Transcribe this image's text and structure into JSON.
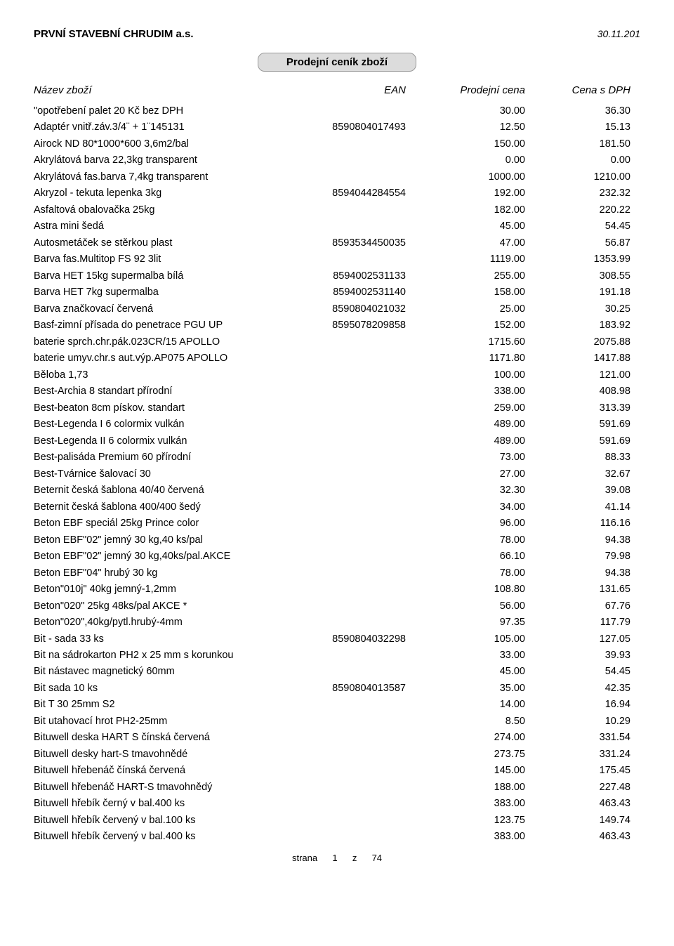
{
  "header": {
    "company": "PRVNÍ STAVEBNÍ CHRUDIM a.s.",
    "date": "30.11.201",
    "title": "Prodejní ceník zboží"
  },
  "columns": {
    "name": "Název zboží",
    "ean": "EAN",
    "price": "Prodejní cena",
    "vat": "Cena s DPH"
  },
  "rows": [
    {
      "name": "\"opotřebení palet 20 Kč bez DPH",
      "ean": "",
      "price": "30.00",
      "vat": "36.30"
    },
    {
      "name": "Adaptér vnitř.záv.3/4¨ + 1¨145131",
      "ean": "8590804017493",
      "price": "12.50",
      "vat": "15.13"
    },
    {
      "name": "Airock ND 80*1000*600 3,6m2/bal",
      "ean": "",
      "price": "150.00",
      "vat": "181.50"
    },
    {
      "name": "Akrylátová barva 22,3kg transparent",
      "ean": "",
      "price": "0.00",
      "vat": "0.00"
    },
    {
      "name": "Akrylátová fas.barva 7,4kg transparent",
      "ean": "",
      "price": "1000.00",
      "vat": "1210.00"
    },
    {
      "name": "Akryzol - tekuta lepenka 3kg",
      "ean": "8594044284554",
      "price": "192.00",
      "vat": "232.32"
    },
    {
      "name": "Asfaltová obalovačka 25kg",
      "ean": "",
      "price": "182.00",
      "vat": "220.22"
    },
    {
      "name": "Astra mini šedá",
      "ean": "",
      "price": "45.00",
      "vat": "54.45"
    },
    {
      "name": "Autosmetáček se stěrkou plast",
      "ean": "8593534450035",
      "price": "47.00",
      "vat": "56.87"
    },
    {
      "name": "Barva fas.Multitop FS 92 3lit",
      "ean": "",
      "price": "1119.00",
      "vat": "1353.99"
    },
    {
      "name": "Barva HET 15kg supermalba bílá",
      "ean": "8594002531133",
      "price": "255.00",
      "vat": "308.55"
    },
    {
      "name": "Barva HET 7kg supermalba",
      "ean": "8594002531140",
      "price": "158.00",
      "vat": "191.18"
    },
    {
      "name": "Barva značkovací červená",
      "ean": "8590804021032",
      "price": "25.00",
      "vat": "30.25"
    },
    {
      "name": "Basf-zimní přísada do penetrace PGU UP",
      "ean": "8595078209858",
      "price": "152.00",
      "vat": "183.92"
    },
    {
      "name": "baterie sprch.chr.pák.023CR/15 APOLLO",
      "ean": "",
      "price": "1715.60",
      "vat": "2075.88"
    },
    {
      "name": "baterie umyv.chr.s aut.výp.AP075 APOLLO",
      "ean": "",
      "price": "1171.80",
      "vat": "1417.88"
    },
    {
      "name": "Běloba 1,73",
      "ean": "",
      "price": "100.00",
      "vat": "121.00"
    },
    {
      "name": "Best-Archia 8 standart přírodní",
      "ean": "",
      "price": "338.00",
      "vat": "408.98"
    },
    {
      "name": "Best-beaton 8cm pískov. standart",
      "ean": "",
      "price": "259.00",
      "vat": "313.39"
    },
    {
      "name": "Best-Legenda I 6 colormix vulkán",
      "ean": "",
      "price": "489.00",
      "vat": "591.69"
    },
    {
      "name": "Best-Legenda II 6 colormix vulkán",
      "ean": "",
      "price": "489.00",
      "vat": "591.69"
    },
    {
      "name": "Best-palisáda Premium 60 přírodní",
      "ean": "",
      "price": "73.00",
      "vat": "88.33"
    },
    {
      "name": "Best-Tvárnice šalovací 30",
      "ean": "",
      "price": "27.00",
      "vat": "32.67"
    },
    {
      "name": "Beternit česká šablona 40/40 červená",
      "ean": "",
      "price": "32.30",
      "vat": "39.08"
    },
    {
      "name": "Beternit česká šablona 400/400 šedý",
      "ean": "",
      "price": "34.00",
      "vat": "41.14"
    },
    {
      "name": "Beton EBF speciál 25kg Prince color",
      "ean": "",
      "price": "96.00",
      "vat": "116.16"
    },
    {
      "name": "Beton EBF\"02\" jemný 30 kg,40 ks/pal",
      "ean": "",
      "price": "78.00",
      "vat": "94.38"
    },
    {
      "name": "Beton EBF\"02\" jemný 30 kg,40ks/pal.AKCE",
      "ean": "",
      "price": "66.10",
      "vat": "79.98"
    },
    {
      "name": "Beton EBF\"04\" hrubý 30 kg",
      "ean": "",
      "price": "78.00",
      "vat": "94.38"
    },
    {
      "name": "Beton\"010j\" 40kg jemný-1,2mm",
      "ean": "",
      "price": "108.80",
      "vat": "131.65"
    },
    {
      "name": "Beton\"020\" 25kg 48ks/pal AKCE    *",
      "ean": "",
      "price": "56.00",
      "vat": "67.76"
    },
    {
      "name": "Beton\"020\",40kg/pytl.hrubý-4mm",
      "ean": "",
      "price": "97.35",
      "vat": "117.79"
    },
    {
      "name": "Bit - sada 33 ks",
      "ean": "8590804032298",
      "price": "105.00",
      "vat": "127.05"
    },
    {
      "name": "Bit na sádrokarton PH2 x 25 mm s korunkou",
      "ean": "",
      "price": "33.00",
      "vat": "39.93"
    },
    {
      "name": "Bit nástavec magnetický 60mm",
      "ean": "",
      "price": "45.00",
      "vat": "54.45"
    },
    {
      "name": "Bit sada 10 ks",
      "ean": "8590804013587",
      "price": "35.00",
      "vat": "42.35"
    },
    {
      "name": "Bit T 30 25mm S2",
      "ean": "",
      "price": "14.00",
      "vat": "16.94"
    },
    {
      "name": "Bit utahovací hrot PH2-25mm",
      "ean": "",
      "price": "8.50",
      "vat": "10.29"
    },
    {
      "name": "Bituwell deska HART S čínská červená",
      "ean": "",
      "price": "274.00",
      "vat": "331.54"
    },
    {
      "name": "Bituwell desky hart-S tmavohnědé",
      "ean": "",
      "price": "273.75",
      "vat": "331.24"
    },
    {
      "name": "Bituwell hřebenáč čínská červená",
      "ean": "",
      "price": "145.00",
      "vat": "175.45"
    },
    {
      "name": "Bituwell hřebenáč HART-S tmavohnědý",
      "ean": "",
      "price": "188.00",
      "vat": "227.48"
    },
    {
      "name": "Bituwell hřebík černý v bal.400 ks",
      "ean": "",
      "price": "383.00",
      "vat": "463.43"
    },
    {
      "name": "Bituwell hřebík červený v bal.100 ks",
      "ean": "",
      "price": "123.75",
      "vat": "149.74"
    },
    {
      "name": "Bituwell hřebík červený v bal.400 ks",
      "ean": "",
      "price": "383.00",
      "vat": "463.43"
    }
  ],
  "footer": {
    "label": "strana",
    "page": "1",
    "sep": "z",
    "total": "74"
  }
}
